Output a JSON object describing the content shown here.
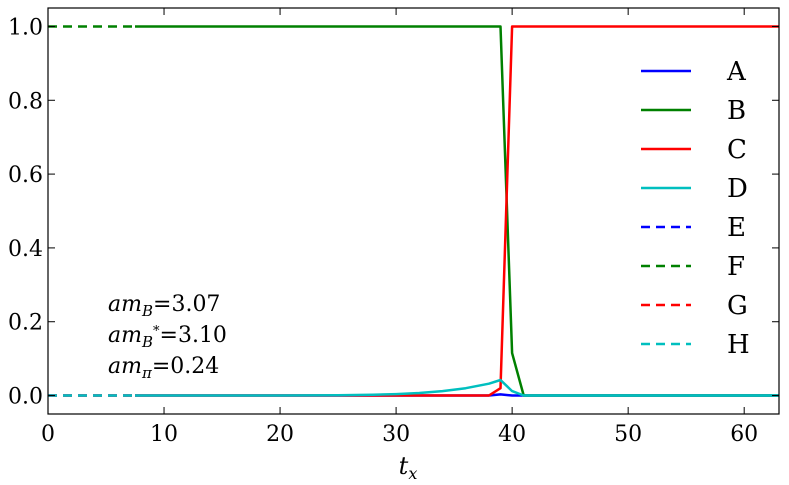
{
  "chart_data": {
    "type": "line",
    "title": "",
    "xlabel": "t_x",
    "ylabel": "",
    "xlim": [
      0,
      63
    ],
    "ylim": [
      -0.05,
      1.05
    ],
    "xticks": [
      0,
      10,
      20,
      30,
      40,
      50,
      60
    ],
    "yticks": [
      0.0,
      0.2,
      0.4,
      0.6,
      0.8,
      1.0
    ],
    "xtick_labels": [
      "0",
      "10",
      "20",
      "30",
      "40",
      "50",
      "60"
    ],
    "ytick_labels": [
      "0.0",
      "0.2",
      "0.4",
      "0.6",
      "0.8",
      "1.0"
    ],
    "grid": false,
    "legend_position": "right",
    "series": [
      {
        "name": "A",
        "color": "#0000ff",
        "style": "solid",
        "x": [
          7.5,
          38,
          39,
          40,
          41,
          63
        ],
        "y": [
          0,
          0,
          0.003,
          0,
          0,
          0
        ]
      },
      {
        "name": "B",
        "color": "#008000",
        "style": "solid",
        "x": [
          7.5,
          39,
          40,
          41,
          63
        ],
        "y": [
          1.0,
          1.0,
          0.115,
          0,
          0
        ]
      },
      {
        "name": "C",
        "color": "#ff0000",
        "style": "solid",
        "x": [
          7.5,
          38,
          39,
          40,
          63
        ],
        "y": [
          0,
          0,
          0.02,
          1.0,
          1.0
        ]
      },
      {
        "name": "D",
        "color": "#00bfbf",
        "style": "solid",
        "x": [
          7.5,
          10,
          15,
          20,
          25,
          28,
          30,
          32,
          34,
          36,
          38,
          39,
          40,
          41,
          63
        ],
        "y": [
          0,
          0,
          0,
          0,
          0.001,
          0.002,
          0.004,
          0.007,
          0.012,
          0.02,
          0.032,
          0.042,
          0.012,
          0,
          0
        ]
      },
      {
        "name": "E",
        "color": "#0000ff",
        "style": "dashed",
        "x": [
          0,
          7.5
        ],
        "y": [
          0,
          0
        ]
      },
      {
        "name": "F",
        "color": "#008000",
        "style": "dashed",
        "x": [
          0,
          7.5
        ],
        "y": [
          1.0,
          1.0
        ]
      },
      {
        "name": "G",
        "color": "#ff0000",
        "style": "dashed",
        "x": [
          0,
          7.5
        ],
        "y": [
          0,
          0
        ]
      },
      {
        "name": "H",
        "color": "#00bfbf",
        "style": "dashed",
        "x": [
          0,
          7.5
        ],
        "y": [
          0,
          0
        ]
      }
    ],
    "annotations": [
      {
        "main": "am",
        "sub": "B",
        "sup": "",
        "value": "=3.07"
      },
      {
        "main": "am",
        "sub": "B",
        "sup": "*",
        "value": "=3.10"
      },
      {
        "main": "am",
        "sub": "π",
        "sup": "",
        "value": "=0.24"
      }
    ]
  }
}
